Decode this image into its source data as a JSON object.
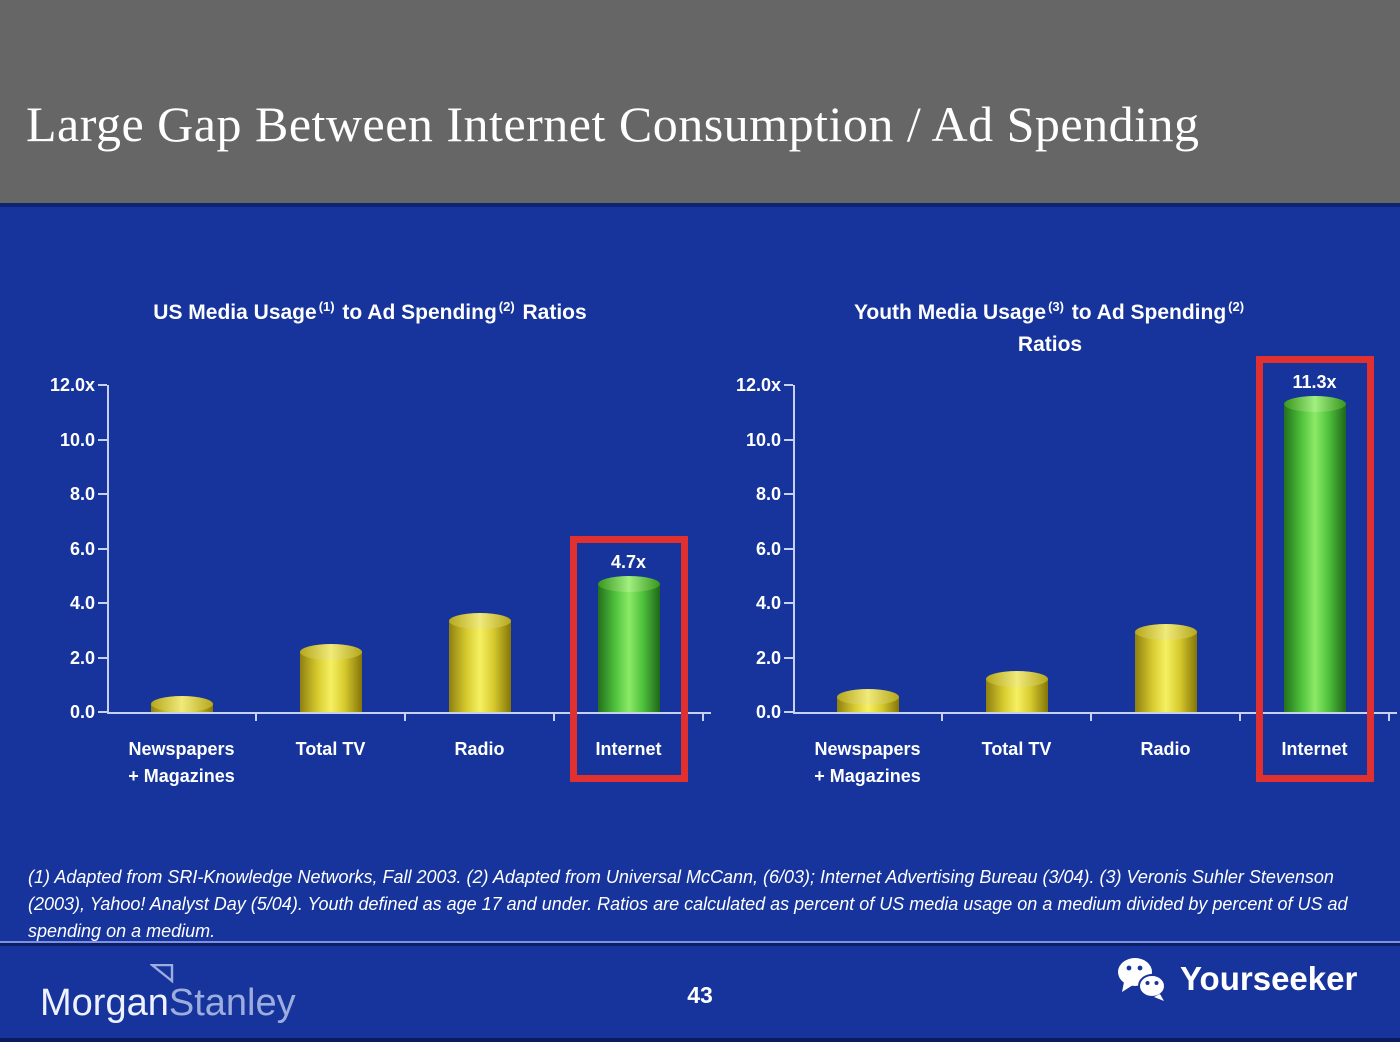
{
  "slide": {
    "title": "Large Gap Between Internet Consumption / Ad Spending",
    "page_number": "43",
    "footnote": "(1) Adapted from SRI-Knowledge Networks, Fall 2003.  (2) Adapted from Universal McCann, (6/03); Internet Advertising Bureau (3/04). (3) Veronis Suhler Stevenson (2003), Yahoo! Analyst Day (5/04).  Youth defined as age 17 and under.  Ratios are calculated as percent of US media usage on a medium divided by percent of US ad spending on a medium."
  },
  "branding": {
    "logo_left_part1": "Morgan",
    "logo_left_part2": "Stanley",
    "logo_right": "Yourseeker",
    "logo_right_icon": "wechat-icon"
  },
  "colors": {
    "background_blue": "#16349b",
    "header_gray": "#666667",
    "bar_yellow": "#f6f062",
    "bar_green": "#8cea68",
    "highlight_red": "#e03030",
    "axis_light_blue": "#c7d2f2",
    "text_white": "#ffffff"
  },
  "chart_data": [
    {
      "type": "bar",
      "title": {
        "seg1": "US Media Usage",
        "sup1": "(1)",
        "seg2": " to Ad Spending",
        "sup2": "(2)",
        "seg3": " Ratios",
        "line2": ""
      },
      "categories": [
        "Newspapers\n+ Magazines",
        "Total TV",
        "Radio",
        "Internet"
      ],
      "values": [
        0.3,
        2.2,
        3.35,
        4.7
      ],
      "bar_styles": [
        "yellow",
        "yellow",
        "yellow",
        "green"
      ],
      "highlight": {
        "category_index": 3,
        "label": "4.7x"
      },
      "ylabel_ticks": [
        "12.0x",
        "10.0",
        "8.0",
        "6.0",
        "4.0",
        "2.0",
        "0.0"
      ],
      "ylim": [
        0,
        12
      ],
      "grid": false,
      "legend": "none"
    },
    {
      "type": "bar",
      "title": {
        "seg1": "Youth Media Usage",
        "sup1": "(3)",
        "seg2": " to Ad Spending",
        "sup2": "(2)",
        "seg3": "",
        "line2": "Ratios"
      },
      "categories": [
        "Newspapers\n+ Magazines",
        "Total TV",
        "Radio",
        "Internet"
      ],
      "values": [
        0.55,
        1.2,
        2.95,
        11.3
      ],
      "bar_styles": [
        "yellow",
        "yellow",
        "yellow",
        "green"
      ],
      "highlight": {
        "category_index": 3,
        "label": "11.3x"
      },
      "ylabel_ticks": [
        "12.0x",
        "10.0",
        "8.0",
        "6.0",
        "4.0",
        "2.0",
        "0.0"
      ],
      "ylim": [
        0,
        12
      ],
      "grid": false,
      "legend": "none"
    }
  ]
}
